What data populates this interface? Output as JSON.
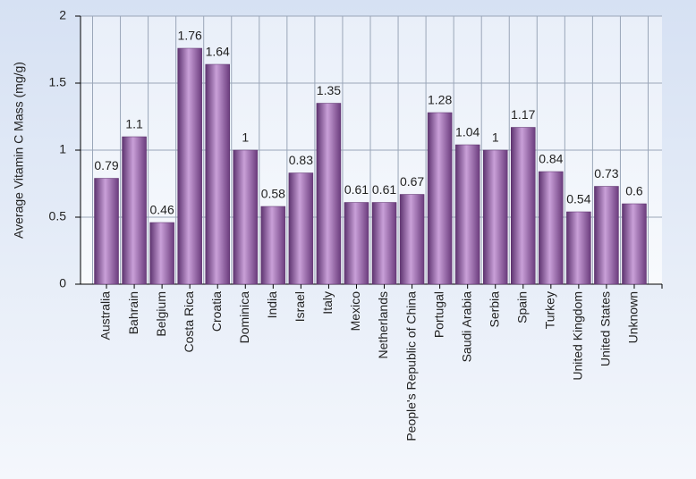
{
  "chart_data": {
    "type": "bar",
    "y_label": "Average Vitamin C Mass (mg/g)",
    "categories": [
      "Australia",
      "Bahrain",
      "Belgium",
      "Costa Rica",
      "Croatia",
      "Dominica",
      "India",
      "Israel",
      "Italy",
      "Mexico",
      "Netherlands",
      "People's Republic of China",
      "Portugal",
      "Saudi Arabia",
      "Serbia",
      "Spain",
      "Turkey",
      "United Kingdom",
      "United States",
      "Unknown"
    ],
    "values": [
      0.79,
      1.1,
      0.46,
      1.76,
      1.64,
      1,
      0.58,
      0.83,
      1.35,
      0.61,
      0.61,
      0.67,
      1.28,
      1.04,
      1,
      1.17,
      0.84,
      0.54,
      0.73,
      0.6
    ],
    "color": "#9b6aa8",
    "ylim": [
      0,
      2
    ],
    "yticks": [
      0,
      0.5,
      1,
      1.5,
      2
    ],
    "grid": true
  }
}
